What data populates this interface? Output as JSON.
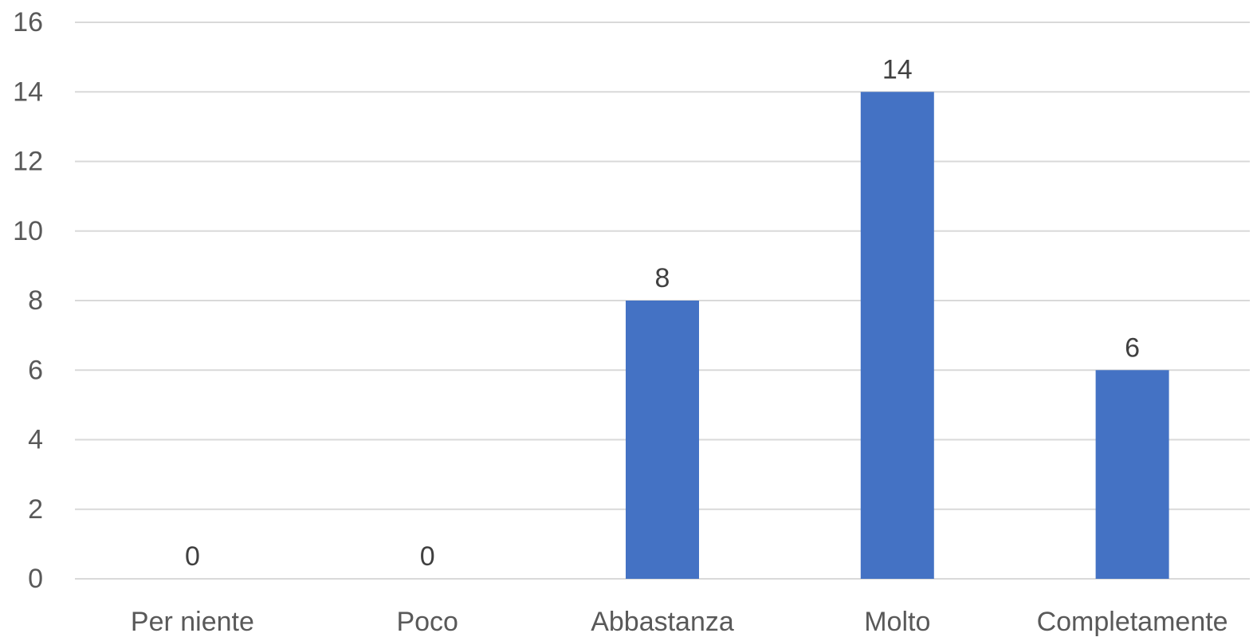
{
  "chart_data": {
    "type": "bar",
    "categories": [
      "Per niente",
      "Poco",
      "Abbastanza",
      "Molto",
      "Completamente"
    ],
    "values": [
      0,
      0,
      8,
      14,
      6
    ],
    "data_labels": [
      "0",
      "0",
      "8",
      "14",
      "6"
    ],
    "title": "",
    "xlabel": "",
    "ylabel": "",
    "ylim": [
      0,
      16
    ],
    "yticks": [
      0,
      2,
      4,
      6,
      8,
      10,
      12,
      14,
      16
    ],
    "grid": "horizontal",
    "bar_color": "#4472C4"
  }
}
